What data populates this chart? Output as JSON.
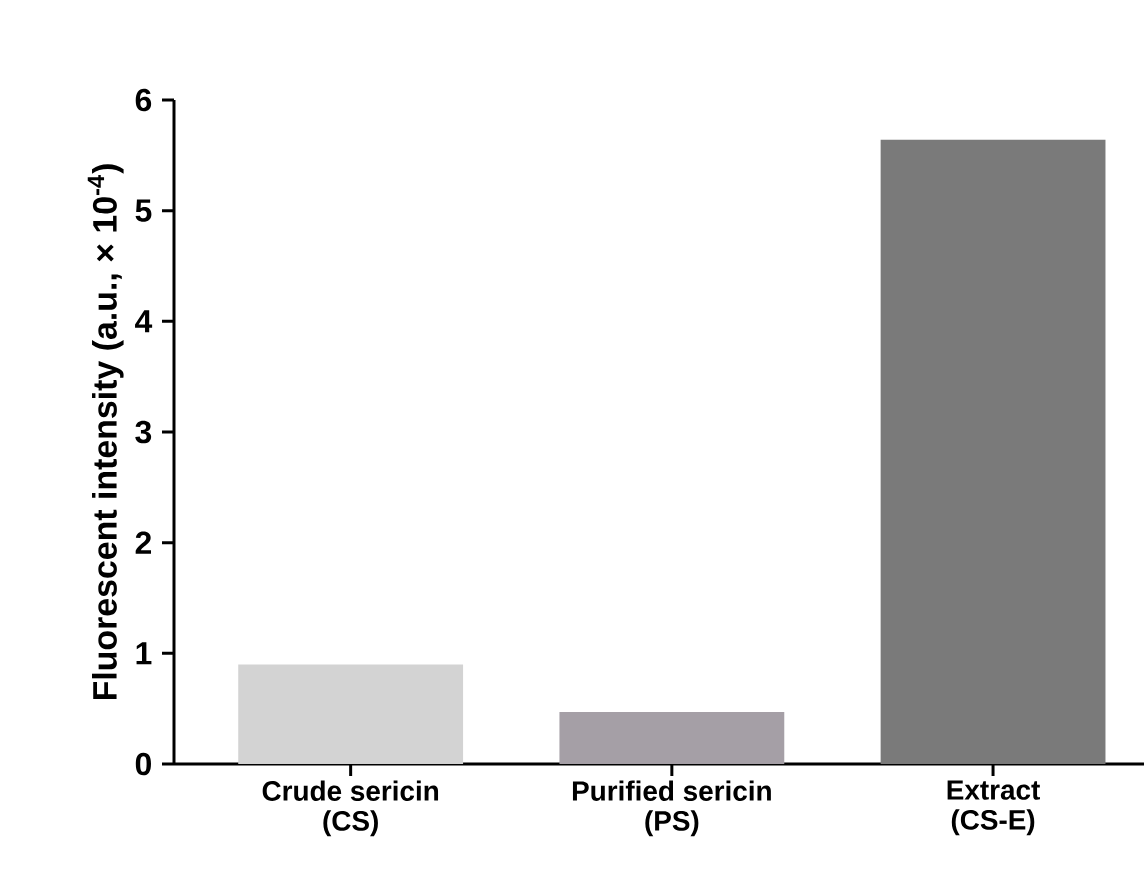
{
  "chart_data": {
    "type": "bar",
    "ylabel": "Fluorescent intensity (a.u., × 10$^{-4}$)",
    "categories": [
      "Crude sericin (CS)",
      "Purified sericin (PS)",
      "Extract (CS-E)"
    ],
    "values": [
      0.9,
      0.47,
      5.64
    ],
    "colors": [
      "#d3d3d3",
      "#a59fa6",
      "#7a7a7a"
    ],
    "ylim": [
      0,
      6
    ],
    "yticks": [
      0,
      1,
      2,
      3,
      4,
      5,
      6
    ]
  }
}
